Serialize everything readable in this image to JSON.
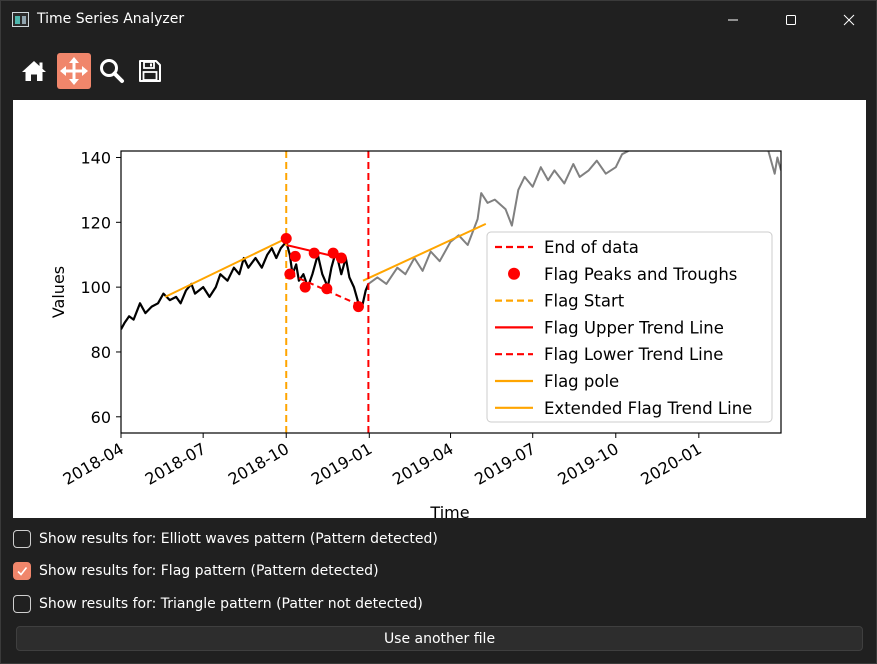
{
  "window": {
    "title": "Time Series Analyzer"
  },
  "toolbar": {
    "tools": [
      {
        "name": "home",
        "icon": "home-icon",
        "active": false
      },
      {
        "name": "pan",
        "icon": "move-arrows-icon",
        "active": true
      },
      {
        "name": "zoom",
        "icon": "magnifier-icon",
        "active": false
      },
      {
        "name": "save",
        "icon": "floppy-disk-icon",
        "active": false
      }
    ],
    "accent": "#f0866b"
  },
  "chart_data": {
    "type": "line",
    "xlabel": "Time",
    "ylabel": "Values",
    "x_range": [
      "2018-04-01",
      "2020-04-01"
    ],
    "ylim": [
      55,
      142
    ],
    "x_ticks": [
      "2018-04",
      "2018-07",
      "2018-10",
      "2019-01",
      "2019-04",
      "2019-07",
      "2019-10",
      "2020-01"
    ],
    "y_ticks": [
      60,
      80,
      100,
      120,
      140
    ],
    "grid": false,
    "legend": {
      "placement": "center-right",
      "entries": [
        {
          "label": "End of data",
          "color": "#ff0000",
          "style": "dashed"
        },
        {
          "label": "Flag Peaks and Troughs",
          "color": "#ff0000",
          "style": "marker"
        },
        {
          "label": "Flag Start",
          "color": "#ffa500",
          "style": "dashed"
        },
        {
          "label": "Flag Upper Trend Line",
          "color": "#ff0000",
          "style": "solid"
        },
        {
          "label": "Flag Lower Trend Line",
          "color": "#ff0000",
          "style": "dashed"
        },
        {
          "label": "Flag pole",
          "color": "#ffa500",
          "style": "solid"
        },
        {
          "label": "Extended Flag Trend Line",
          "color": "#ffa500",
          "style": "solid"
        }
      ]
    },
    "series": [
      {
        "role": "observed",
        "color": "#000000",
        "points": [
          [
            "2018-04-01",
            87
          ],
          [
            "2018-04-05",
            89
          ],
          [
            "2018-04-10",
            91
          ],
          [
            "2018-04-15",
            90
          ],
          [
            "2018-04-22",
            95
          ],
          [
            "2018-04-28",
            92
          ],
          [
            "2018-05-05",
            94
          ],
          [
            "2018-05-12",
            95
          ],
          [
            "2018-05-18",
            98
          ],
          [
            "2018-05-25",
            96
          ],
          [
            "2018-06-01",
            97
          ],
          [
            "2018-06-06",
            95
          ],
          [
            "2018-06-12",
            99
          ],
          [
            "2018-06-18",
            101
          ],
          [
            "2018-06-22",
            98
          ],
          [
            "2018-07-01",
            100
          ],
          [
            "2018-07-08",
            97
          ],
          [
            "2018-07-15",
            100
          ],
          [
            "2018-07-20",
            104
          ],
          [
            "2018-07-28",
            102
          ],
          [
            "2018-08-04",
            106
          ],
          [
            "2018-08-10",
            104
          ],
          [
            "2018-08-15",
            109
          ],
          [
            "2018-08-20",
            106
          ],
          [
            "2018-08-28",
            109
          ],
          [
            "2018-09-04",
            106
          ],
          [
            "2018-09-10",
            110
          ],
          [
            "2018-09-15",
            112
          ],
          [
            "2018-09-20",
            109
          ],
          [
            "2018-09-25",
            112
          ],
          [
            "2018-10-01",
            114
          ],
          [
            "2018-10-03",
            112
          ],
          [
            "2018-10-05",
            110
          ],
          [
            "2018-10-08",
            104
          ],
          [
            "2018-10-12",
            107
          ],
          [
            "2018-10-15",
            102
          ],
          [
            "2018-10-20",
            104
          ],
          [
            "2018-10-25",
            100
          ],
          [
            "2018-10-30",
            104
          ],
          [
            "2018-11-05",
            110
          ],
          [
            "2018-11-10",
            104
          ],
          [
            "2018-11-16",
            100
          ],
          [
            "2018-11-20",
            106
          ],
          [
            "2018-11-25",
            111
          ],
          [
            "2018-12-01",
            104
          ],
          [
            "2018-12-06",
            109
          ],
          [
            "2018-12-10",
            103
          ],
          [
            "2018-12-15",
            100
          ],
          [
            "2018-12-20",
            95
          ],
          [
            "2018-12-24",
            94
          ],
          [
            "2018-12-28",
            99
          ],
          [
            "2018-12-31",
            101
          ]
        ]
      },
      {
        "role": "continuation",
        "color": "#808080",
        "points": [
          [
            "2018-12-31",
            101
          ],
          [
            "2019-01-10",
            103
          ],
          [
            "2019-01-20",
            101
          ],
          [
            "2019-02-01",
            106
          ],
          [
            "2019-02-10",
            104
          ],
          [
            "2019-02-20",
            109
          ],
          [
            "2019-03-01",
            105
          ],
          [
            "2019-03-10",
            111
          ],
          [
            "2019-03-20",
            108
          ],
          [
            "2019-04-01",
            114
          ],
          [
            "2019-04-10",
            116
          ],
          [
            "2019-04-20",
            113
          ],
          [
            "2019-05-01",
            121
          ],
          [
            "2019-05-05",
            129
          ],
          [
            "2019-05-12",
            126
          ],
          [
            "2019-05-20",
            127
          ],
          [
            "2019-06-01",
            124
          ],
          [
            "2019-06-08",
            119
          ],
          [
            "2019-06-15",
            130
          ],
          [
            "2019-06-22",
            134
          ],
          [
            "2019-07-01",
            131
          ],
          [
            "2019-07-10",
            137
          ],
          [
            "2019-07-18",
            133
          ],
          [
            "2019-07-25",
            136
          ],
          [
            "2019-08-05",
            132
          ],
          [
            "2019-08-15",
            138
          ],
          [
            "2019-08-22",
            134
          ],
          [
            "2019-09-01",
            136
          ],
          [
            "2019-09-10",
            139
          ],
          [
            "2019-09-20",
            135
          ],
          [
            "2019-10-01",
            137
          ],
          [
            "2019-10-08",
            141
          ],
          [
            "2019-10-15",
            142
          ]
        ]
      },
      {
        "role": "continuation-tail",
        "color": "#808080",
        "points": [
          [
            "2020-03-18",
            142
          ],
          [
            "2020-03-22",
            138
          ],
          [
            "2020-03-25",
            135
          ],
          [
            "2020-03-28",
            140
          ],
          [
            "2020-04-01",
            136
          ]
        ]
      }
    ],
    "flag_peaks_troughs": [
      [
        "2018-10-01",
        115
      ],
      [
        "2018-10-05",
        104
      ],
      [
        "2018-10-11",
        109.5
      ],
      [
        "2018-10-22",
        100
      ],
      [
        "2018-11-01",
        110.5
      ],
      [
        "2018-11-15",
        99.5
      ],
      [
        "2018-11-22",
        110.5
      ],
      [
        "2018-12-01",
        109
      ],
      [
        "2018-12-20",
        94
      ]
    ],
    "end_of_data": "2018-12-31",
    "flag_start": "2018-10-01",
    "flag_pole": [
      [
        "2018-05-20",
        97
      ],
      [
        "2018-10-01",
        115
      ]
    ],
    "flag_upper_trend": [
      [
        "2018-10-01",
        113
      ],
      [
        "2018-12-01",
        109
      ]
    ],
    "flag_lower_trend": [
      [
        "2018-10-05",
        104
      ],
      [
        "2018-12-25",
        94
      ]
    ],
    "extended_flag_trend": [
      [
        "2018-12-25",
        102
      ],
      [
        "2019-05-10",
        119.5
      ]
    ]
  },
  "options": [
    {
      "label": "Show results for: Elliott waves pattern (Pattern detected)",
      "checked": false
    },
    {
      "label": "Show results for: Flag pattern (Pattern detected)",
      "checked": true
    },
    {
      "label": "Show results for: Triangle pattern (Patter not detected)",
      "checked": false
    }
  ],
  "use_file_label": "Use another file"
}
